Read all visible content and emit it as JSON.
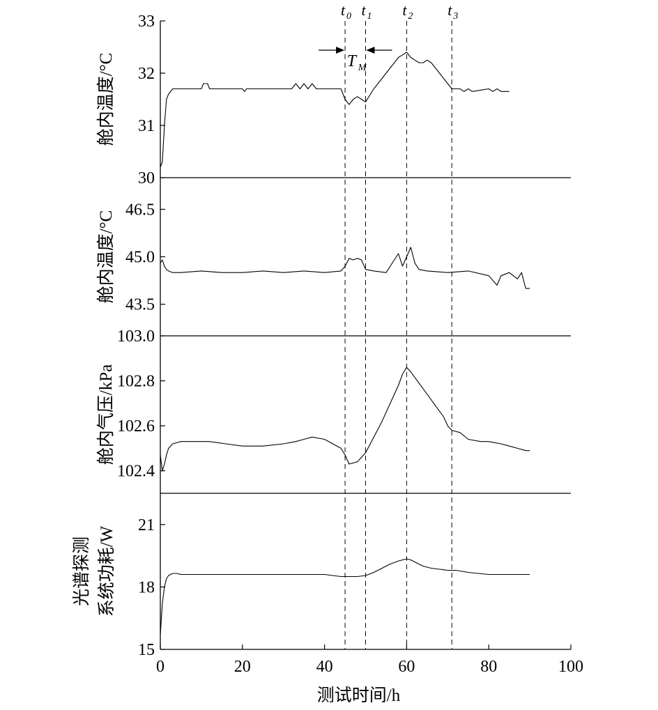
{
  "chart_data": {
    "type": "line",
    "xlabel": "测试时间/h",
    "xlim": [
      0,
      100
    ],
    "xticks": [
      0,
      20,
      40,
      60,
      80,
      100
    ],
    "events": [
      {
        "label": "t",
        "sub": "0",
        "x": 45
      },
      {
        "label": "t",
        "sub": "1",
        "x": 50
      },
      {
        "label": "t",
        "sub": "2",
        "x": 60
      },
      {
        "label": "t",
        "sub": "3",
        "x": 71
      }
    ],
    "annotation": {
      "label": "T",
      "sub": "M",
      "from_event": 0,
      "to_event": 1
    },
    "panels": [
      {
        "ylabel": [
          "舱内温度/°C"
        ],
        "ylim": [
          30,
          33
        ],
        "yticks": [
          30,
          31,
          32,
          33
        ],
        "ytick_labels": [
          "30",
          "31",
          "32",
          "33"
        ],
        "series": {
          "x": [
            0,
            0.5,
            1,
            1.5,
            2,
            3,
            4,
            5,
            10,
            10.5,
            11.5,
            12,
            20,
            20.5,
            21,
            30,
            32,
            33,
            34,
            35,
            36,
            37,
            38,
            44,
            44.5,
            45,
            46,
            47,
            48,
            49,
            50,
            52,
            54,
            56,
            58,
            59,
            60,
            61,
            62,
            63,
            64,
            65,
            66,
            67,
            68,
            69,
            70,
            71,
            72,
            73,
            74,
            75,
            76,
            80,
            81,
            82,
            83,
            85
          ],
          "y": [
            30.2,
            30.3,
            31.0,
            31.5,
            31.6,
            31.7,
            31.7,
            31.7,
            31.7,
            31.8,
            31.8,
            31.7,
            31.7,
            31.65,
            31.7,
            31.7,
            31.7,
            31.8,
            31.7,
            31.8,
            31.7,
            31.8,
            31.7,
            31.7,
            31.6,
            31.5,
            31.4,
            31.5,
            31.55,
            31.5,
            31.45,
            31.7,
            31.9,
            32.1,
            32.3,
            32.35,
            32.4,
            32.3,
            32.25,
            32.2,
            32.2,
            32.25,
            32.2,
            32.1,
            32.0,
            31.9,
            31.8,
            31.7,
            31.7,
            31.7,
            31.65,
            31.7,
            31.65,
            31.7,
            31.65,
            31.7,
            31.65,
            31.65
          ]
        }
      },
      {
        "ylabel": [
          "舱内温度/°C"
        ],
        "ylim": [
          42.5,
          47.5
        ],
        "yticks": [
          43.5,
          45.0,
          46.5
        ],
        "ytick_labels": [
          "43.5",
          "45.0",
          "46.5"
        ],
        "series": {
          "x": [
            0,
            0.5,
            1,
            1.5,
            2,
            3,
            5,
            10,
            15,
            20,
            25,
            30,
            35,
            40,
            44,
            45,
            46,
            47,
            48,
            49,
            50,
            52,
            55,
            57,
            58,
            59,
            60,
            61,
            62,
            63,
            65,
            70,
            75,
            80,
            82,
            83,
            85,
            87,
            88,
            89,
            90
          ],
          "y": [
            44.8,
            44.9,
            44.7,
            44.6,
            44.55,
            44.5,
            44.5,
            44.55,
            44.5,
            44.5,
            44.55,
            44.5,
            44.55,
            44.5,
            44.55,
            44.7,
            44.95,
            44.9,
            44.95,
            44.9,
            44.6,
            44.55,
            44.5,
            44.9,
            45.1,
            44.7,
            45.0,
            45.3,
            44.8,
            44.6,
            44.55,
            44.5,
            44.55,
            44.4,
            44.1,
            44.4,
            44.5,
            44.3,
            44.5,
            44.0,
            44.0
          ]
        }
      },
      {
        "ylabel": [
          "舱内气压/kPa"
        ],
        "ylim": [
          102.3,
          103.0
        ],
        "yticks": [
          102.4,
          102.6,
          102.8,
          103.0
        ],
        "ytick_labels": [
          "102.4",
          "102.6",
          "102.8",
          "103.0"
        ],
        "series": {
          "x": [
            0,
            0.5,
            1,
            1.5,
            2,
            3,
            5,
            8,
            12,
            16,
            20,
            25,
            30,
            33,
            35,
            37,
            40,
            42,
            44,
            45,
            45.5,
            46,
            48,
            50,
            52,
            54,
            56,
            58,
            59,
            60,
            61,
            63,
            65,
            67,
            69,
            70,
            71,
            73,
            75,
            78,
            80,
            83,
            85,
            87,
            89,
            90
          ],
          "y": [
            102.47,
            102.4,
            102.43,
            102.47,
            102.5,
            102.52,
            102.53,
            102.53,
            102.53,
            102.52,
            102.51,
            102.51,
            102.52,
            102.53,
            102.54,
            102.55,
            102.54,
            102.52,
            102.5,
            102.47,
            102.45,
            102.43,
            102.44,
            102.48,
            102.55,
            102.62,
            102.7,
            102.78,
            102.83,
            102.86,
            102.84,
            102.79,
            102.74,
            102.69,
            102.64,
            102.6,
            102.58,
            102.57,
            102.54,
            102.53,
            102.53,
            102.52,
            102.51,
            102.5,
            102.49,
            102.49
          ]
        }
      },
      {
        "ylabel": [
          "光谱探测",
          "系统功耗/W"
        ],
        "ylim": [
          15,
          22.5
        ],
        "yticks": [
          15,
          18,
          21
        ],
        "ytick_labels": [
          "15",
          "18",
          "21"
        ],
        "series": {
          "x": [
            0,
            0.5,
            1,
            1.5,
            2,
            3,
            4,
            5,
            10,
            15,
            20,
            25,
            30,
            35,
            40,
            44,
            46,
            48,
            50,
            52,
            54,
            56,
            58,
            59,
            60,
            61,
            62,
            64,
            66,
            68,
            70,
            72,
            75,
            80,
            85,
            90
          ],
          "y": [
            15.7,
            17.2,
            18.0,
            18.4,
            18.55,
            18.65,
            18.65,
            18.6,
            18.6,
            18.6,
            18.6,
            18.6,
            18.6,
            18.6,
            18.6,
            18.5,
            18.5,
            18.5,
            18.55,
            18.7,
            18.9,
            19.1,
            19.25,
            19.3,
            19.35,
            19.3,
            19.2,
            19.0,
            18.9,
            18.85,
            18.8,
            18.8,
            18.7,
            18.6,
            18.6,
            18.6
          ]
        }
      }
    ]
  }
}
